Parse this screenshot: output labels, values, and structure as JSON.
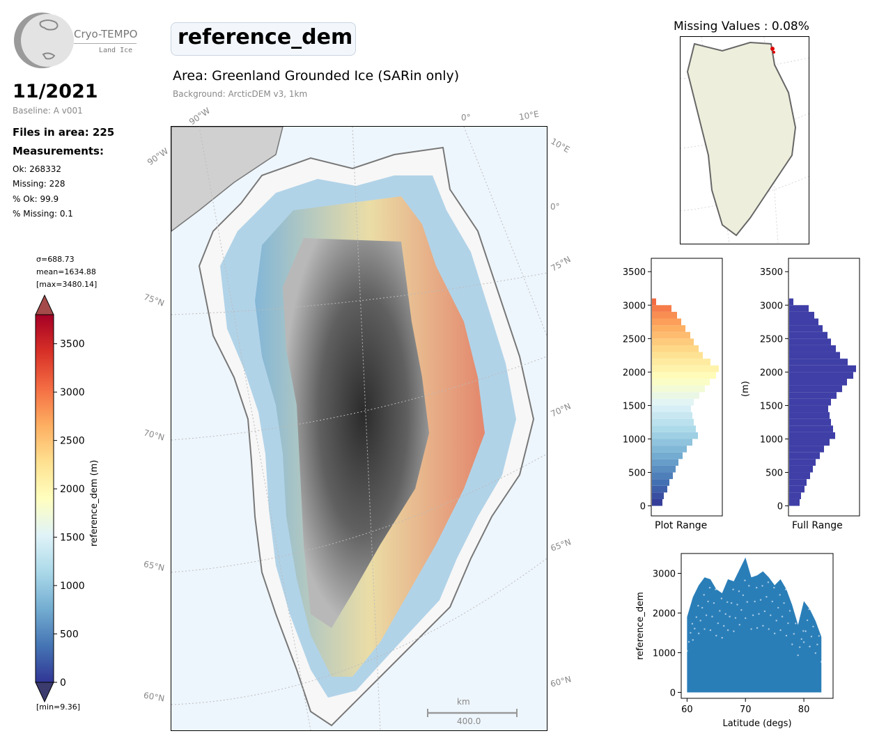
{
  "logo": {
    "name": "Cryo-TEMPO",
    "subtitle": "Land Ice"
  },
  "header": {
    "date": "11/2021",
    "baseline": "Baseline: A v001",
    "files_in_area": "Files in area: 225",
    "measurements_heading": "Measurements:",
    "ok": "Ok: 268332",
    "missing": "Missing: 228",
    "pct_ok": "% Ok: 99.9",
    "pct_missing": "% Missing: 0.1"
  },
  "map": {
    "title": "reference_dem",
    "area": "Area: Greenland Grounded Ice (SARin only)",
    "background": "Background: ArcticDEM v3, 1km",
    "lat_labels": [
      "75°N",
      "70°N",
      "65°N",
      "60°N",
      "75°N",
      "70°N",
      "65°N",
      "60°N"
    ],
    "lon_labels": [
      "90°W",
      "90°W",
      "0°",
      "10°E",
      "10°E",
      "0°"
    ],
    "scalebar_unit": "km",
    "scalebar_value": "400.0"
  },
  "colorbar": {
    "sigma": "σ=688.73",
    "mean": "mean=1634.88",
    "max": "[max=3480.14]",
    "min": "[min=9.36]",
    "label": "reference_dem (m)",
    "ticks": [
      "0",
      "500",
      "1000",
      "1500",
      "2000",
      "2500",
      "3000",
      "3500"
    ],
    "range": [
      0,
      3800
    ],
    "cmap": [
      "#313695",
      "#4575b4",
      "#74add1",
      "#abd9e9",
      "#e0f3f8",
      "#ffffbf",
      "#fee090",
      "#fdae61",
      "#f46d43",
      "#d73027",
      "#a50026"
    ]
  },
  "missing_map": {
    "title": "Missing Values : 0.08%"
  },
  "histograms": {
    "left_label": "Plot Range",
    "right_label": "Full Range",
    "right_ylabel": "(m)",
    "ticks": [
      "0",
      "500",
      "1000",
      "1500",
      "2000",
      "2500",
      "3000",
      "3500"
    ]
  },
  "chart_data": [
    {
      "type": "bar",
      "title": "Plot Range",
      "orientation": "horizontal",
      "ylim": [
        -150,
        3700
      ],
      "bin_centers": [
        50,
        150,
        250,
        350,
        450,
        550,
        650,
        750,
        850,
        950,
        1050,
        1150,
        1250,
        1350,
        1450,
        1550,
        1650,
        1750,
        1850,
        1950,
        2050,
        2150,
        2250,
        2350,
        2450,
        2550,
        2650,
        2750,
        2850,
        2950,
        3050
      ],
      "counts": [
        15,
        17,
        22,
        25,
        30,
        34,
        38,
        44,
        50,
        58,
        66,
        63,
        60,
        58,
        56,
        60,
        68,
        76,
        83,
        92,
        96,
        84,
        73,
        67,
        60,
        55,
        48,
        42,
        36,
        28,
        6
      ]
    },
    {
      "type": "bar",
      "title": "Full Range",
      "orientation": "horizontal",
      "ylabel": "(m)",
      "ylim": [
        -150,
        3700
      ],
      "bin_centers": [
        50,
        150,
        250,
        350,
        450,
        550,
        650,
        750,
        850,
        950,
        1050,
        1150,
        1250,
        1350,
        1450,
        1550,
        1650,
        1750,
        1850,
        1950,
        2050,
        2150,
        2250,
        2350,
        2450,
        2550,
        2650,
        2750,
        2850,
        2950,
        3050
      ],
      "counts": [
        15,
        17,
        22,
        25,
        30,
        34,
        38,
        44,
        50,
        58,
        66,
        63,
        60,
        58,
        56,
        60,
        68,
        76,
        83,
        92,
        96,
        84,
        73,
        67,
        60,
        55,
        48,
        42,
        36,
        28,
        6
      ],
      "color": "#3f3fa7"
    },
    {
      "type": "scatter",
      "xlabel": "Latitude (degs)",
      "ylabel": "reference_dem",
      "xlim": [
        59,
        85
      ],
      "ylim": [
        -150,
        3500
      ],
      "xticks": [
        60,
        70,
        80
      ],
      "yticks": [
        0,
        1000,
        2000,
        3000
      ],
      "color": "#1f77b4",
      "envelope_x": [
        60,
        61,
        62,
        63,
        64,
        65,
        66,
        67,
        68,
        69,
        70,
        71,
        72,
        73,
        74,
        75,
        76,
        77,
        78,
        79,
        80,
        81,
        82,
        83
      ],
      "envelope_top": [
        1900,
        2400,
        2700,
        2900,
        2850,
        2600,
        2500,
        2850,
        2800,
        3100,
        3400,
        2900,
        2950,
        3050,
        2900,
        2700,
        2850,
        2600,
        2200,
        1700,
        2300,
        2100,
        1800,
        1400
      ],
      "envelope_bottom": [
        0,
        0,
        0,
        0,
        0,
        0,
        0,
        0,
        0,
        0,
        0,
        0,
        0,
        0,
        0,
        0,
        0,
        0,
        0,
        0,
        0,
        0,
        0,
        0
      ]
    }
  ]
}
